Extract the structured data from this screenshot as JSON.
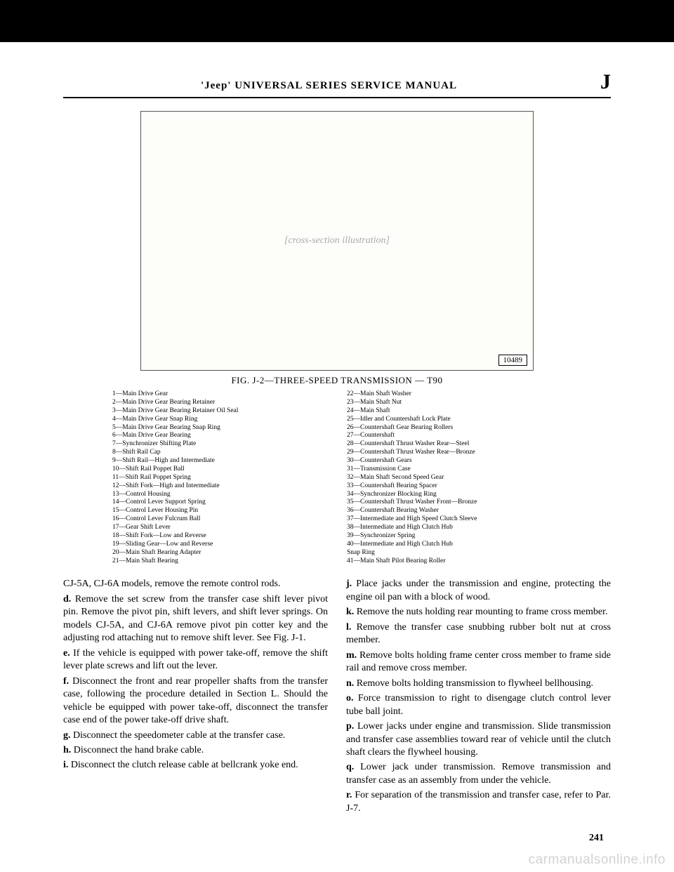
{
  "header": {
    "title": "'Jeep' UNIVERSAL SERIES SERVICE MANUAL",
    "section": "J"
  },
  "figure": {
    "id_box": "10489",
    "caption": "FIG. J-2—THREE-SPEED TRANSMISSION — T90",
    "placeholder": "[cross-section illustration]",
    "parts_left": "1—Main Drive Gear\n2—Main Drive Gear Bearing Retainer\n3—Main Drive Gear Bearing Retainer Oil Seal\n4—Main Drive Gear Snap Ring\n5—Main Drive Gear Bearing Snap Ring\n6—Main Drive Gear Bearing\n7—Synchronizer Shifting Plate\n8—Shift Rail Cap\n9—Shift Rail—High and Intermediate\n10—Shift Rail Poppet Ball\n11—Shift Rail Poppet Spring\n12—Shift Fork—High and Intermediate\n13—Control Housing\n14—Control Lever Support Spring\n15—Control Lever Housing Pin\n16—Control Lever Fulcrum Ball\n17—Gear Shift Lever\n18—Shift Fork—Low and Reverse\n19—Sliding Gear—Low and Reverse\n20—Main Shaft Bearing Adapter\n21—Main Shaft Bearing",
    "parts_right": "22—Main Shaft Washer\n23—Main Shaft Nut\n24—Main Shaft\n25—Idler and Countershaft Lock Plate\n26—Countershaft Gear Bearing Rollers\n27—Countershaft\n28—Countershaft Thrust Washer Rear—Steel\n29—Countershaft Thrust Washer Rear—Bronze\n30—Countershaft Gears\n31—Transmission Case\n32—Main Shaft Second Speed Gear\n33—Countershaft Bearing Spacer\n34—Synchronizer Blocking Ring\n35—Countershaft Thrust Washer Front—Bronze\n36—Countershaft Bearing Washer\n37—Intermediate and High Speed Clutch Sleeve\n38—Intermediate and High Clutch Hub\n39—Synchronizer Spring\n40—Intermediate and High Clutch Hub\n        Snap Ring\n41—Main Shaft Pilot Bearing Roller"
  },
  "body": {
    "left": {
      "intro": "CJ-5A, CJ-6A models, remove the remote control rods.",
      "d": "Remove the set screw from the transfer case shift lever pivot pin. Remove the pivot pin, shift levers, and shift lever springs. On models CJ-5A, and CJ-6A remove pivot pin cotter key and the adjusting rod attaching nut to remove shift lever. See Fig. J-1.",
      "e": "If the vehicle is equipped with power take-off, remove the shift lever plate screws and lift out the lever.",
      "f": "Disconnect the front and rear propeller shafts from the transfer case, following the procedure detailed in Section L. Should the vehicle be equipped with power take-off, disconnect the transfer case end of the power take-off drive shaft.",
      "g": "Disconnect the speedometer cable at the transfer case.",
      "h": "Disconnect the hand brake cable.",
      "i": "Disconnect the clutch release cable at bellcrank yoke end."
    },
    "right": {
      "j": "Place jacks under the transmission and engine, protecting the engine oil pan with a block of wood.",
      "k": "Remove the nuts holding rear mounting to frame cross member.",
      "l": "Remove the transfer case snubbing rubber bolt nut at cross member.",
      "m": "Remove bolts holding frame center cross member to frame side rail and remove cross member.",
      "n": "Remove bolts holding transmission to flywheel bellhousing.",
      "o": "Force transmission to right to disengage clutch control lever tube ball joint.",
      "p": "Lower jacks under engine and transmission. Slide transmission and transfer case assemblies toward rear of vehicle until the clutch shaft clears the flywheel housing.",
      "q": "Lower jack under transmission. Remove transmission and transfer case as an assembly from under the vehicle.",
      "r": "For separation of the transmission and transfer case, refer to Par. J-7."
    }
  },
  "labels": {
    "d": "d.",
    "e": "e.",
    "f": "f.",
    "g": "g.",
    "h": "h.",
    "i": "i.",
    "j": "j.",
    "k": "k.",
    "l": "l.",
    "m": "m.",
    "n": "n.",
    "o": "o.",
    "p": "p.",
    "q": "q.",
    "r": "r."
  },
  "page_number": "241",
  "watermark": "carmanualsonline.info"
}
